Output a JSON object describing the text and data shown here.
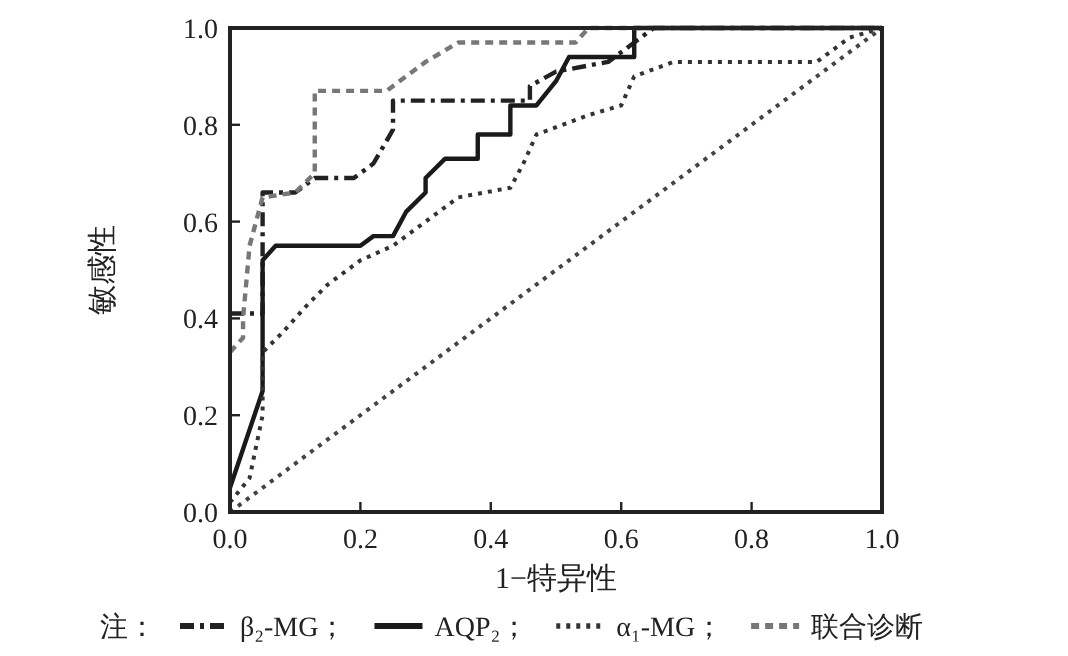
{
  "chart_data": {
    "type": "line",
    "xlabel": "1−特异性",
    "ylabel": "敏感性",
    "legend_title": "注：",
    "legend": "bottom",
    "xlim": [
      0,
      1
    ],
    "ylim": [
      0,
      1
    ],
    "xticks": [
      {
        "value": 0,
        "label": "0.0"
      },
      {
        "value": 0.2,
        "label": "0.2"
      },
      {
        "value": 0.4,
        "label": "0.4"
      },
      {
        "value": 0.6,
        "label": "0.6"
      },
      {
        "value": 0.8,
        "label": "0.8"
      },
      {
        "value": 1,
        "label": "1.0"
      }
    ],
    "yticks": [
      {
        "value": 0,
        "label": "0.0"
      },
      {
        "value": 0.2,
        "label": "0.2"
      },
      {
        "value": 0.4,
        "label": "0.4"
      },
      {
        "value": 0.6,
        "label": "0.6"
      },
      {
        "value": 0.8,
        "label": "0.8"
      },
      {
        "value": 1,
        "label": "1.0"
      }
    ],
    "grid": false,
    "marker": "none",
    "series": [
      {
        "name": "β₂-MG；",
        "color": "#222222",
        "line_style": "dashdot",
        "x": [
          0,
          0.05,
          0.05,
          0.1,
          0.13,
          0.19,
          0.22,
          0.25,
          0.25,
          0.46,
          0.46,
          0.5,
          0.58,
          0.62,
          0.65,
          1
        ],
        "values": [
          0.41,
          0.41,
          0.66,
          0.66,
          0.69,
          0.69,
          0.72,
          0.79,
          0.85,
          0.85,
          0.88,
          0.91,
          0.93,
          0.97,
          1,
          1
        ]
      },
      {
        "name": "AQP₂；",
        "color": "#1a1a1a",
        "line_style": "solid",
        "x": [
          0,
          0.05,
          0.05,
          0.07,
          0.2,
          0.22,
          0.25,
          0.27,
          0.3,
          0.3,
          0.33,
          0.38,
          0.38,
          0.43,
          0.43,
          0.47,
          0.5,
          0.52,
          0.62,
          0.62,
          1
        ],
        "values": [
          0.05,
          0.25,
          0.52,
          0.55,
          0.55,
          0.57,
          0.57,
          0.62,
          0.66,
          0.69,
          0.73,
          0.73,
          0.78,
          0.78,
          0.84,
          0.84,
          0.89,
          0.94,
          0.94,
          1,
          1
        ]
      },
      {
        "name": "α₁-MG；",
        "color": "#333333",
        "line_style": "dotted",
        "x": [
          0,
          0.03,
          0.05,
          0.05,
          0.08,
          0.12,
          0.15,
          0.2,
          0.25,
          0.3,
          0.35,
          0.43,
          0.45,
          0.47,
          0.55,
          0.6,
          0.62,
          0.68,
          0.9,
          0.95,
          1
        ],
        "values": [
          0.02,
          0.07,
          0.2,
          0.33,
          0.37,
          0.43,
          0.47,
          0.52,
          0.55,
          0.6,
          0.65,
          0.67,
          0.72,
          0.78,
          0.82,
          0.84,
          0.9,
          0.93,
          0.93,
          0.98,
          1
        ]
      },
      {
        "name": "联合诊断",
        "color": "#777777",
        "line_style": "dashed",
        "x": [
          0,
          0.02,
          0.02,
          0.03,
          0.05,
          0.1,
          0.13,
          0.13,
          0.24,
          0.27,
          0.3,
          0.35,
          0.53,
          0.55,
          1
        ],
        "values": [
          0.33,
          0.36,
          0.4,
          0.55,
          0.65,
          0.66,
          0.7,
          0.87,
          0.87,
          0.9,
          0.93,
          0.97,
          0.97,
          1,
          1
        ]
      },
      {
        "color": "#444444",
        "line_style": "dotted",
        "x": [
          0,
          1
        ],
        "values": [
          0,
          1
        ]
      }
    ]
  }
}
